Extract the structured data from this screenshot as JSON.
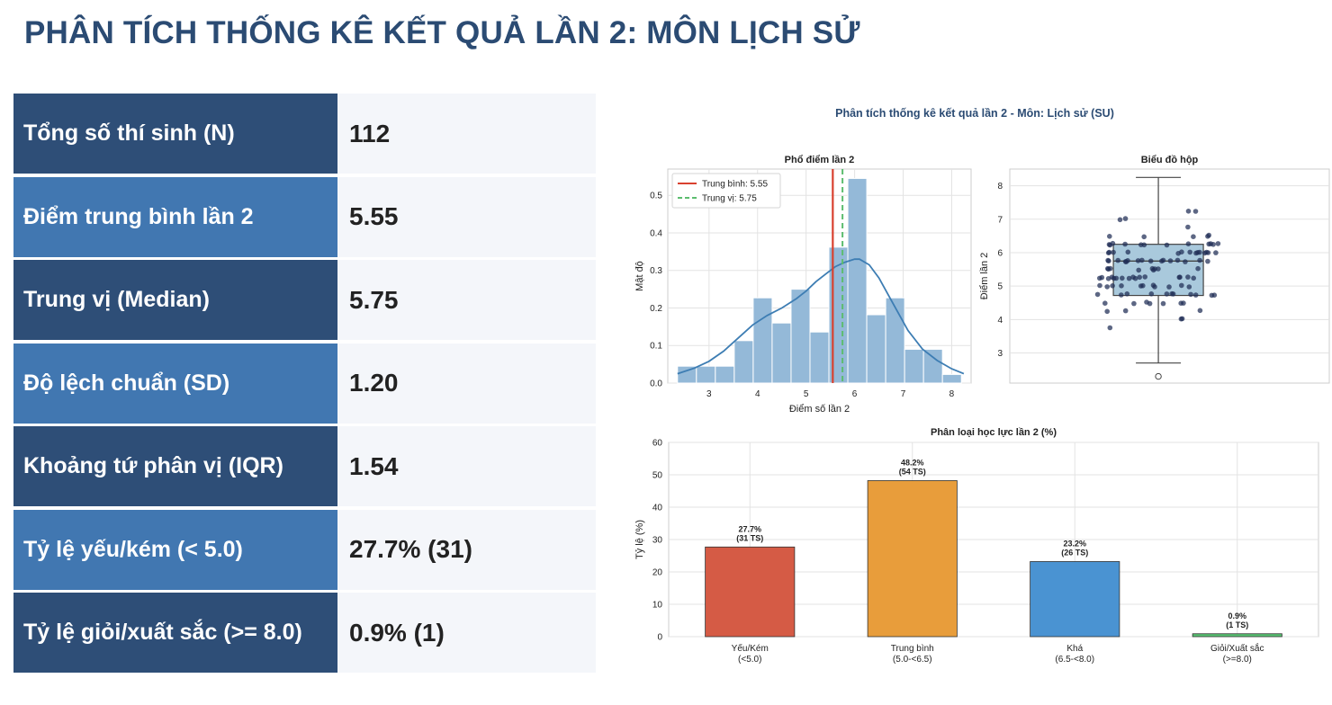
{
  "page_title": "PHÂN TÍCH THỐNG KÊ KẾT QUẢ LẦN 2: MÔN LỊCH SỬ",
  "stats": [
    {
      "label": "Tổng số thí sinh (N)",
      "value": "112"
    },
    {
      "label": "Điểm trung bình lần 2",
      "value": "5.55"
    },
    {
      "label": "Trung vị (Median)",
      "value": "5.75"
    },
    {
      "label": "Độ lệch chuẩn (SD)",
      "value": "1.20"
    },
    {
      "label": "Khoảng tứ phân vị (IQR)",
      "value": "1.54"
    },
    {
      "label": "Tỷ lệ yếu/kém (< 5.0)",
      "value": "27.7% (31)"
    },
    {
      "label": "Tỷ lệ giỏi/xuất sắc (>= 8.0)",
      "value": "0.9% (1)"
    }
  ],
  "colors": {
    "stat_label_dark": "#2e4e77",
    "stat_label_light": "#4177b1",
    "hist_bar": "#94b9d8",
    "kde_line": "#3d7db3",
    "mean_line": "#d9412f",
    "median_line": "#5cbd6f",
    "box_fill": "#a9c9dc",
    "point": "#1f2d55"
  },
  "chart_data": {
    "suptitle": "Phân tích thống kê kết quả lần 2 - Môn: Lịch sử (SU)",
    "histogram": {
      "type": "bar",
      "title": "Phổ điểm lần 2",
      "xlabel": "Điểm số lần 2",
      "ylabel": "Mật độ",
      "xlim": [
        2.15,
        8.4
      ],
      "ylim": [
        0,
        0.57
      ],
      "xticks": [
        "3",
        "4",
        "5",
        "6",
        "7",
        "8"
      ],
      "yticks": [
        "0.0",
        "0.1",
        "0.2",
        "0.3",
        "0.4",
        "0.5"
      ],
      "bins": [
        {
          "x0": 2.35,
          "x1": 2.74,
          "value": 0.045
        },
        {
          "x0": 2.74,
          "x1": 3.13,
          "value": 0.045
        },
        {
          "x0": 3.13,
          "x1": 3.52,
          "value": 0.045
        },
        {
          "x0": 3.52,
          "x1": 3.91,
          "value": 0.113
        },
        {
          "x0": 3.91,
          "x1": 4.3,
          "value": 0.227
        },
        {
          "x0": 4.3,
          "x1": 4.69,
          "value": 0.16
        },
        {
          "x0": 4.69,
          "x1": 5.08,
          "value": 0.25
        },
        {
          "x0": 5.08,
          "x1": 5.47,
          "value": 0.136
        },
        {
          "x0": 5.47,
          "x1": 5.86,
          "value": 0.362
        },
        {
          "x0": 5.86,
          "x1": 6.25,
          "value": 0.545
        },
        {
          "x0": 6.25,
          "x1": 6.64,
          "value": 0.182
        },
        {
          "x0": 6.64,
          "x1": 7.03,
          "value": 0.227
        },
        {
          "x0": 7.03,
          "x1": 7.42,
          "value": 0.09
        },
        {
          "x0": 7.42,
          "x1": 7.81,
          "value": 0.09
        },
        {
          "x0": 7.81,
          "x1": 8.2,
          "value": 0.023
        }
      ],
      "kde": {
        "x": [
          2.35,
          2.7,
          3.0,
          3.3,
          3.6,
          3.9,
          4.2,
          4.5,
          4.8,
          5.0,
          5.2,
          5.4,
          5.6,
          5.8,
          6.0,
          6.1,
          6.3,
          6.5,
          6.8,
          7.1,
          7.4,
          7.7,
          8.0,
          8.25
        ],
        "y": [
          0.025,
          0.04,
          0.058,
          0.085,
          0.12,
          0.155,
          0.18,
          0.2,
          0.225,
          0.245,
          0.27,
          0.29,
          0.31,
          0.322,
          0.33,
          0.33,
          0.315,
          0.28,
          0.21,
          0.14,
          0.09,
          0.06,
          0.038,
          0.025
        ]
      },
      "mean": 5.55,
      "median": 5.75,
      "legend": [
        "Trung bình: 5.55",
        "Trung vị: 5.75"
      ],
      "legend_placement": "top-left"
    },
    "boxplot": {
      "type": "box",
      "title": "Biểu đồ hộp",
      "ylabel": "Điểm lần 2",
      "ylim": [
        2.1,
        8.5
      ],
      "yticks": [
        "3",
        "4",
        "5",
        "6",
        "7",
        "8"
      ],
      "q1": 4.72,
      "median": 5.75,
      "q3": 6.25,
      "whisker_low": 2.7,
      "whisker_high": 8.25,
      "outliers": [
        2.3
      ]
    },
    "classification": {
      "type": "bar",
      "title": "Phân loại học lực lần 2 (%)",
      "ylabel": "Tỷ lệ (%)",
      "ylim": [
        0,
        60
      ],
      "yticks": [
        "0",
        "10",
        "20",
        "30",
        "40",
        "50",
        "60"
      ],
      "categories": [
        {
          "line1": "Yếu/Kém",
          "line2": "(<5.0)"
        },
        {
          "line1": "Trung bình",
          "line2": "(5.0-<6.5)"
        },
        {
          "line1": "Khá",
          "line2": "(6.5-<8.0)"
        },
        {
          "line1": "Giỏi/Xuất sắc",
          "line2": "(>=8.0)"
        }
      ],
      "values": [
        27.7,
        48.2,
        23.2,
        0.9
      ],
      "labels_pct": [
        "27.7%",
        "48.2%",
        "23.2%",
        "0.9%"
      ],
      "labels_count": [
        "(31 TS)",
        "(54 TS)",
        "(26 TS)",
        "(1 TS)"
      ],
      "bar_colors": [
        "#d55b45",
        "#e89d3b",
        "#4a93d2",
        "#58c171"
      ]
    }
  }
}
